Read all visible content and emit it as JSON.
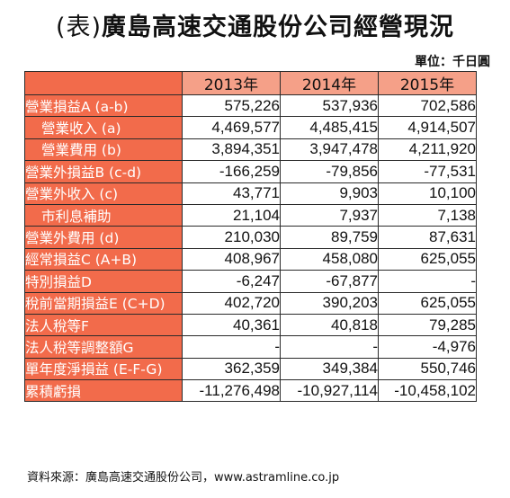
{
  "title": {
    "paren": "(表)",
    "text": "廣島高速交通股份公司經營現況"
  },
  "unit": "單位：千日圓",
  "years": [
    "2013年",
    "2014年",
    "2015年"
  ],
  "rows": [
    {
      "label": "營業損益A (a-b)",
      "indent": false,
      "values": [
        "575,226",
        "537,936",
        "702,586"
      ]
    },
    {
      "label": "營業收入 (a)",
      "indent": true,
      "values": [
        "4,469,577",
        "4,485,415",
        "4,914,507"
      ]
    },
    {
      "label": "營業費用 (b)",
      "indent": true,
      "values": [
        "3,894,351",
        "3,947,478",
        "4,211,920"
      ]
    },
    {
      "label": "營業外損益B (c-d)",
      "indent": false,
      "values": [
        "-166,259",
        "-79,856",
        "-77,531"
      ]
    },
    {
      "label": "營業外收入 (c)",
      "indent": false,
      "values": [
        "43,771",
        "9,903",
        "10,100"
      ]
    },
    {
      "label": "市利息補助",
      "indent": true,
      "values": [
        "21,104",
        "7,937",
        "7,138"
      ]
    },
    {
      "label": "營業外費用 (d)",
      "indent": false,
      "values": [
        "210,030",
        "89,759",
        "87,631"
      ]
    },
    {
      "label": "經常損益C (A+B)",
      "indent": false,
      "values": [
        "408,967",
        "458,080",
        "625,055"
      ]
    },
    {
      "label": "特別損益D",
      "indent": false,
      "values": [
        "-6,247",
        "-67,877",
        "-"
      ]
    },
    {
      "label": "稅前當期損益E (C+D)",
      "indent": false,
      "values": [
        "402,720",
        "390,203",
        "625,055"
      ]
    },
    {
      "label": "法人稅等F",
      "indent": false,
      "values": [
        "40,361",
        "40,818",
        "79,285"
      ]
    },
    {
      "label": "法人稅等調整額G",
      "indent": false,
      "values": [
        "-",
        "-",
        "-4,976"
      ]
    },
    {
      "label": "單年度淨損益 (E-F-G)",
      "indent": false,
      "values": [
        "362,359",
        "349,384",
        "550,746"
      ]
    },
    {
      "label": "累積虧損",
      "indent": false,
      "values": [
        "-11,276,498",
        "-10,927,114",
        "-10,458,102"
      ]
    }
  ],
  "source": "資料來源：廣島高速交通股份公司，www.astramline.co.jp"
}
